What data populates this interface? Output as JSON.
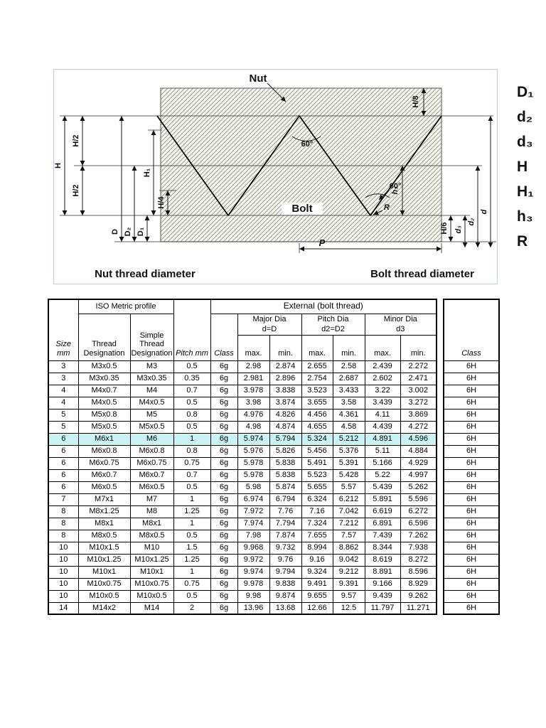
{
  "diagram": {
    "nut_label": "Nut",
    "bolt_label": "Bolt",
    "caption_left": "Nut thread diameter",
    "caption_right": "Bolt thread diameter",
    "angle_top": "60°",
    "angle_flank": "60°",
    "pitch_label": "P",
    "radius_label": "R",
    "dims": {
      "H8": "H/8",
      "H": "H",
      "H2_top": "H/2",
      "H2_bottom": "H/2",
      "H1": "H₁",
      "H4": "H/4",
      "D": "D",
      "D2": "D₂",
      "D1": "D₁",
      "H6": "H/6",
      "h3": "h₃",
      "d3": "d₃",
      "d2": "d₂",
      "d": "d"
    },
    "side_labels": [
      "D₁",
      "d₂",
      "d₃",
      "H",
      "H₁",
      "h₃",
      "R"
    ]
  },
  "table": {
    "header": {
      "iso_metric": "ISO Metric profile",
      "external": "External (bolt thread)",
      "major_dia": "Major Dia",
      "pitch_dia": "Pitch Dia",
      "minor_dia": "Minor Dia",
      "major_eq": "d=D",
      "pitch_eq": "d2=D2",
      "minor_eq": "d3",
      "size": "Size mm",
      "thread": "Thread Designation",
      "simple": "Simple Thread Designation",
      "pitch_mm": "Pitch mm",
      "cls": "Class",
      "max": "max.",
      "min": "min."
    },
    "internal_class_header": "Class",
    "highlight_index": 6,
    "highlight_color": "#c9f4f2",
    "rows": [
      [
        "3",
        "M3x0.5",
        "M3",
        "0.5",
        "6g",
        "2.98",
        "2.874",
        "2.655",
        "2.58",
        "2.439",
        "2.272",
        "6H"
      ],
      [
        "3",
        "M3x0.35",
        "M3x0.35",
        "0.35",
        "6g",
        "2.981",
        "2.896",
        "2.754",
        "2.687",
        "2.602",
        "2.471",
        "6H"
      ],
      [
        "4",
        "M4x0.7",
        "M4",
        "0.7",
        "6g",
        "3.978",
        "3.838",
        "3.523",
        "3.433",
        "3.22",
        "3.002",
        "6H"
      ],
      [
        "4",
        "M4x0.5",
        "M4x0.5",
        "0.5",
        "6g",
        "3.98",
        "3.874",
        "3.655",
        "3.58",
        "3.439",
        "3.272",
        "6H"
      ],
      [
        "5",
        "M5x0.8",
        "M5",
        "0.8",
        "6g",
        "4.976",
        "4.826",
        "4.456",
        "4.361",
        "4.11",
        "3.869",
        "6H"
      ],
      [
        "5",
        "M5x0.5",
        "M5x0.5",
        "0.5",
        "6g",
        "4.98",
        "4.874",
        "4.655",
        "4.58",
        "4.439",
        "4.272",
        "6H"
      ],
      [
        "6",
        "M6x1",
        "M6",
        "1",
        "6g",
        "5.974",
        "5.794",
        "5.324",
        "5.212",
        "4.891",
        "4.596",
        "6H"
      ],
      [
        "6",
        "M6x0.8",
        "M6x0.8",
        "0.8",
        "6g",
        "5.976",
        "5.826",
        "5.456",
        "5.376",
        "5.11",
        "4.884",
        "6H"
      ],
      [
        "6",
        "M6x0.75",
        "M6x0.75",
        "0.75",
        "6g",
        "5.978",
        "5.838",
        "5.491",
        "5.391",
        "5.166",
        "4.929",
        "6H"
      ],
      [
        "6",
        "M6x0.7",
        "M6x0.7",
        "0.7",
        "6g",
        "5.978",
        "5.838",
        "5.523",
        "5.428",
        "5.22",
        "4.997",
        "6H"
      ],
      [
        "6",
        "M6x0.5",
        "M6x0.5",
        "0.5",
        "6g",
        "5.98",
        "5.874",
        "5.655",
        "5.57",
        "5.439",
        "5.262",
        "6H"
      ],
      [
        "7",
        "M7x1",
        "M7",
        "1",
        "6g",
        "6.974",
        "6.794",
        "6.324",
        "6.212",
        "5.891",
        "5.596",
        "6H"
      ],
      [
        "8",
        "M8x1.25",
        "M8",
        "1.25",
        "6g",
        "7.972",
        "7.76",
        "7.16",
        "7.042",
        "6.619",
        "6.272",
        "6H"
      ],
      [
        "8",
        "M8x1",
        "M8x1",
        "1",
        "6g",
        "7.974",
        "7.794",
        "7.324",
        "7.212",
        "6.891",
        "6.596",
        "6H"
      ],
      [
        "8",
        "M8x0.5",
        "M8x0.5",
        "0.5",
        "6g",
        "7.98",
        "7.874",
        "7.655",
        "7.57",
        "7.439",
        "7.262",
        "6H"
      ],
      [
        "10",
        "M10x1.5",
        "M10",
        "1.5",
        "6g",
        "9.968",
        "9.732",
        "8.994",
        "8.862",
        "8.344",
        "7.938",
        "6H"
      ],
      [
        "10",
        "M10x1.25",
        "M10x1.25",
        "1.25",
        "6g",
        "9.972",
        "9.76",
        "9.16",
        "9.042",
        "8.619",
        "8.272",
        "6H"
      ],
      [
        "10",
        "M10x1",
        "M10x1",
        "1",
        "6g",
        "9.974",
        "9.794",
        "9.324",
        "9.212",
        "8.891",
        "8.596",
        "6H"
      ],
      [
        "10",
        "M10x0.75",
        "M10x0.75",
        "0.75",
        "6g",
        "9.978",
        "9.838",
        "9.491",
        "9.391",
        "9.166",
        "8.929",
        "6H"
      ],
      [
        "10",
        "M10x0.5",
        "M10x0.5",
        "0.5",
        "6g",
        "9.98",
        "9.874",
        "9.655",
        "9.57",
        "9.439",
        "9.262",
        "6H"
      ],
      [
        "14",
        "M14x2",
        "M14",
        "2",
        "6g",
        "13.96",
        "13.68",
        "12.66",
        "12.5",
        "11.797",
        "11.271",
        "6H"
      ]
    ]
  }
}
